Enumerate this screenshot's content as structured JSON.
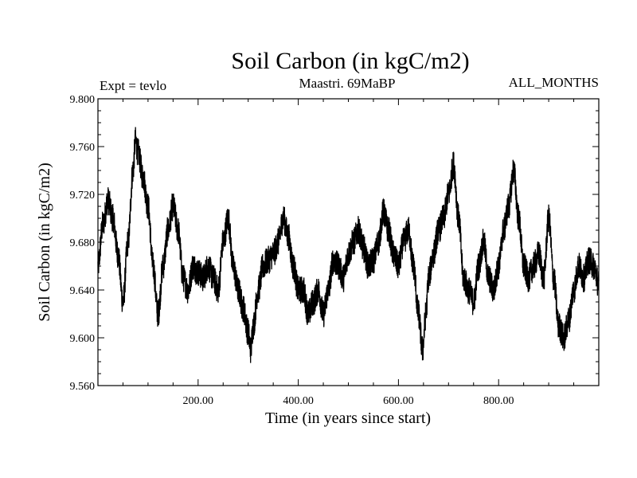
{
  "chart_data": {
    "type": "line",
    "title": "Soil Carbon (in kgC/m2)",
    "subtitle_left": "Expt = tevlo",
    "subtitle_center": "Maastri.  69MaBP",
    "subtitle_right": "ALL_MONTHS",
    "xlabel": "Time (in years since start)",
    "ylabel": "Soil Carbon (in kgC/m2)",
    "xlim": [
      0,
      1000
    ],
    "ylim": [
      9.56,
      9.8
    ],
    "xticks": [
      {
        "value": 200,
        "label": "200.00"
      },
      {
        "value": 400,
        "label": "400.00"
      },
      {
        "value": 600,
        "label": "600.00"
      },
      {
        "value": 800,
        "label": "800.00"
      }
    ],
    "yticks": [
      {
        "value": 9.56,
        "label": "9.560"
      },
      {
        "value": 9.6,
        "label": "9.600"
      },
      {
        "value": 9.64,
        "label": "9.640"
      },
      {
        "value": 9.68,
        "label": "9.680"
      },
      {
        "value": 9.72,
        "label": "9.720"
      },
      {
        "value": 9.76,
        "label": "9.760"
      },
      {
        "value": 9.8,
        "label": "9.800"
      }
    ],
    "line_color": "#000000",
    "noise_amplitude": 0.012,
    "series": [
      {
        "name": "Soil Carbon",
        "x": [
          0,
          10,
          20,
          30,
          40,
          50,
          60,
          70,
          75,
          80,
          90,
          100,
          110,
          120,
          130,
          140,
          150,
          160,
          170,
          180,
          190,
          200,
          210,
          220,
          230,
          240,
          250,
          260,
          270,
          280,
          290,
          300,
          305,
          310,
          320,
          330,
          340,
          350,
          360,
          370,
          380,
          390,
          400,
          410,
          420,
          430,
          440,
          450,
          460,
          470,
          480,
          490,
          500,
          510,
          520,
          530,
          540,
          550,
          560,
          570,
          580,
          590,
          600,
          610,
          620,
          630,
          640,
          648,
          655,
          660,
          670,
          680,
          690,
          700,
          710,
          720,
          730,
          740,
          750,
          760,
          770,
          780,
          790,
          800,
          810,
          820,
          830,
          840,
          850,
          860,
          870,
          880,
          890,
          900,
          910,
          920,
          930,
          940,
          950,
          960,
          970,
          980,
          990,
          1000
        ],
        "values": [
          9.66,
          9.695,
          9.715,
          9.7,
          9.67,
          9.63,
          9.68,
          9.74,
          9.765,
          9.755,
          9.735,
          9.71,
          9.66,
          9.62,
          9.66,
          9.69,
          9.71,
          9.69,
          9.65,
          9.64,
          9.66,
          9.655,
          9.65,
          9.66,
          9.65,
          9.64,
          9.68,
          9.7,
          9.66,
          9.64,
          9.625,
          9.605,
          9.59,
          9.61,
          9.64,
          9.66,
          9.665,
          9.67,
          9.68,
          9.7,
          9.685,
          9.66,
          9.64,
          9.64,
          9.62,
          9.63,
          9.64,
          9.62,
          9.64,
          9.665,
          9.66,
          9.65,
          9.67,
          9.68,
          9.69,
          9.675,
          9.66,
          9.665,
          9.68,
          9.705,
          9.69,
          9.67,
          9.66,
          9.68,
          9.69,
          9.66,
          9.62,
          9.59,
          9.62,
          9.65,
          9.67,
          9.69,
          9.7,
          9.72,
          9.745,
          9.7,
          9.65,
          9.64,
          9.63,
          9.66,
          9.68,
          9.65,
          9.64,
          9.66,
          9.69,
          9.71,
          9.74,
          9.7,
          9.66,
          9.65,
          9.66,
          9.67,
          9.65,
          9.7,
          9.65,
          9.61,
          9.6,
          9.615,
          9.64,
          9.66,
          9.65,
          9.665,
          9.66,
          9.645
        ]
      }
    ]
  }
}
